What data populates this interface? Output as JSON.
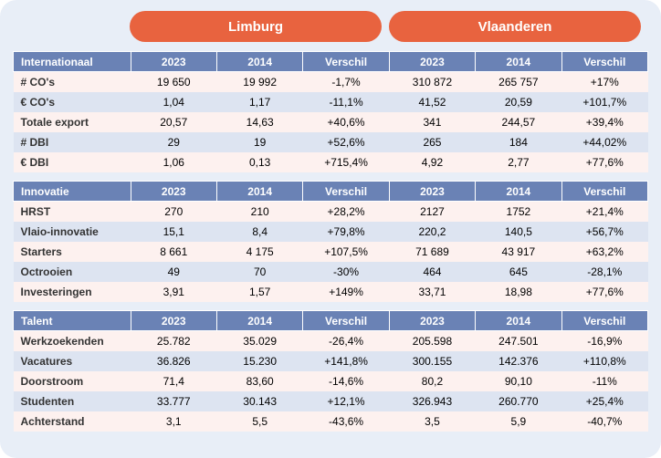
{
  "colors": {
    "page_bg": "#e8eef7",
    "tab_bg": "#e8633f",
    "tab_text": "#ffffff",
    "header_bg": "#6a82b5",
    "header_text": "#ffffff",
    "row_odd_bg": "#fdf1ef",
    "row_even_bg": "#dde4f1",
    "label_text": "#333333"
  },
  "tabs": {
    "limburg": "Limburg",
    "vlaanderen": "Vlaanderen"
  },
  "col_headers": {
    "y2023": "2023",
    "y2014": "2014",
    "verschil": "Verschil"
  },
  "sections": {
    "internationaal": {
      "title": "Internationaal",
      "rows": [
        {
          "label": "# CO's",
          "l2023": "19 650",
          "l2014": "19 992",
          "ldiff": "-1,7%",
          "v2023": "310 872",
          "v2014": "265 757",
          "vdiff": "+17%"
        },
        {
          "label": "€ CO's",
          "l2023": "1,04",
          "l2014": "1,17",
          "ldiff": "-11,1%",
          "v2023": "41,52",
          "v2014": "20,59",
          "vdiff": "+101,7%"
        },
        {
          "label": "Totale export",
          "l2023": "20,57",
          "l2014": "14,63",
          "ldiff": "+40,6%",
          "v2023": "341",
          "v2014": "244,57",
          "vdiff": "+39,4%"
        },
        {
          "label": "# DBI",
          "l2023": "29",
          "l2014": "19",
          "ldiff": "+52,6%",
          "v2023": "265",
          "v2014": "184",
          "vdiff": "+44,02%"
        },
        {
          "label": "€ DBI",
          "l2023": "1,06",
          "l2014": "0,13",
          "ldiff": "+715,4%",
          "v2023": "4,92",
          "v2014": "2,77",
          "vdiff": "+77,6%"
        }
      ]
    },
    "innovatie": {
      "title": "Innovatie",
      "rows": [
        {
          "label": "HRST",
          "l2023": "270",
          "l2014": "210",
          "ldiff": "+28,2%",
          "v2023": "2127",
          "v2014": "1752",
          "vdiff": "+21,4%"
        },
        {
          "label": "Vlaio-innovatie",
          "l2023": "15,1",
          "l2014": "8,4",
          "ldiff": "+79,8%",
          "v2023": "220,2",
          "v2014": "140,5",
          "vdiff": "+56,7%"
        },
        {
          "label": "Starters",
          "l2023": "8 661",
          "l2014": "4 175",
          "ldiff": "+107,5%",
          "v2023": "71 689",
          "v2014": "43 917",
          "vdiff": "+63,2%"
        },
        {
          "label": "Octrooien",
          "l2023": "49",
          "l2014": "70",
          "ldiff": "-30%",
          "v2023": "464",
          "v2014": "645",
          "vdiff": "-28,1%"
        },
        {
          "label": "Investeringen",
          "l2023": "3,91",
          "l2014": "1,57",
          "ldiff": "+149%",
          "v2023": "33,71",
          "v2014": "18,98",
          "vdiff": "+77,6%"
        }
      ]
    },
    "talent": {
      "title": "Talent",
      "rows": [
        {
          "label": "Werkzoekenden",
          "l2023": "25.782",
          "l2014": "35.029",
          "ldiff": "-26,4%",
          "v2023": "205.598",
          "v2014": "247.501",
          "vdiff": "-16,9%"
        },
        {
          "label": "Vacatures",
          "l2023": "36.826",
          "l2014": "15.230",
          "ldiff": "+141,8%",
          "v2023": "300.155",
          "v2014": "142.376",
          "vdiff": "+110,8%"
        },
        {
          "label": "Doorstroom",
          "l2023": "71,4",
          "l2014": "83,60",
          "ldiff": "-14,6%",
          "v2023": "80,2",
          "v2014": "90,10",
          "vdiff": "-11%"
        },
        {
          "label": "Studenten",
          "l2023": "33.777",
          "l2014": "30.143",
          "ldiff": "+12,1%",
          "v2023": "326.943",
          "v2014": "260.770",
          "vdiff": "+25,4%"
        },
        {
          "label": "Achterstand",
          "l2023": "3,1",
          "l2014": "5,5",
          "ldiff": "-43,6%",
          "v2023": "3,5",
          "v2014": "5,9",
          "vdiff": "-40,7%"
        }
      ]
    }
  }
}
